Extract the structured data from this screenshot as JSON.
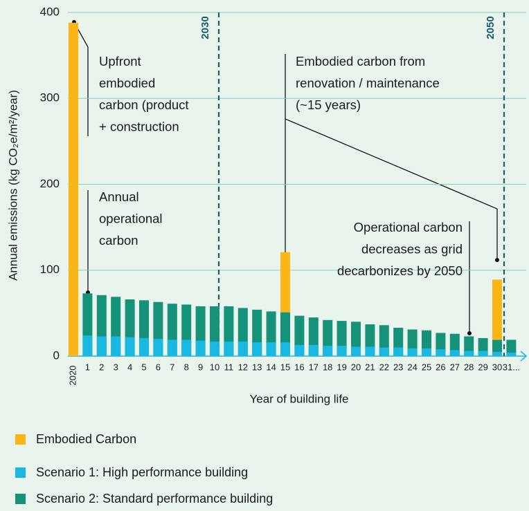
{
  "chart_data": {
    "type": "bar",
    "y_label": "Annual emissions (kg CO₂e/m²/year)",
    "x_label": "Year of building life",
    "categories": [
      "2020",
      "1",
      "2",
      "3",
      "4",
      "5",
      "6",
      "7",
      "8",
      "9",
      "10",
      "11",
      "12",
      "13",
      "14",
      "15",
      "16",
      "17",
      "18",
      "19",
      "20",
      "21",
      "22",
      "23",
      "24",
      "25",
      "26",
      "27",
      "28",
      "29",
      "30",
      "31..."
    ],
    "series": [
      {
        "name": "Embodied Carbon",
        "color": "#fbb616",
        "values": [
          388,
          null,
          null,
          null,
          null,
          null,
          null,
          null,
          null,
          null,
          null,
          null,
          null,
          null,
          null,
          70,
          null,
          null,
          null,
          null,
          null,
          null,
          null,
          null,
          null,
          null,
          null,
          null,
          null,
          null,
          70,
          null
        ]
      },
      {
        "name": "Scenario 1: High performance building",
        "color": "#1ab7e0",
        "values": [
          null,
          24,
          23,
          23,
          22,
          21,
          20,
          19,
          19,
          18,
          17,
          17,
          17,
          16,
          16,
          16,
          13,
          13,
          12,
          12,
          11,
          11,
          10,
          10,
          9,
          9,
          8,
          7,
          6,
          6,
          5,
          4
        ]
      },
      {
        "name": "Scenario 2: Standard performance building",
        "color": "#16927a",
        "values": [
          null,
          73,
          71,
          69,
          66,
          65,
          63,
          61,
          60,
          58,
          58,
          58,
          56,
          54,
          52,
          51,
          47,
          45,
          42,
          41,
          40,
          37,
          36,
          33,
          31,
          30,
          27,
          26,
          23,
          21,
          19,
          19
        ]
      }
    ],
    "ylim": [
      0,
      400
    ],
    "yticks": [
      0,
      100,
      200,
      300,
      400
    ],
    "grid": true,
    "milestones": [
      "2030",
      "2050"
    ],
    "annotations": [
      [
        "Upfront",
        "embodied",
        "carbon (product",
        "+ construction"
      ],
      [
        "Annual",
        "operational",
        "carbon"
      ],
      [
        "Embodied carbon from",
        "renovation / maintenance",
        "(~15 years)"
      ],
      [
        "Operational carbon",
        "decreases as grid",
        "decarbonizes by 2050"
      ]
    ]
  }
}
